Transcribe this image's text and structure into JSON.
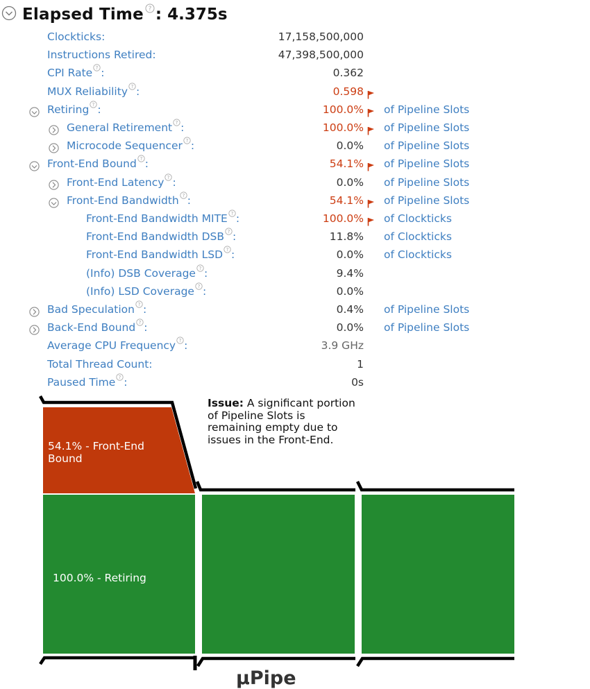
{
  "header": {
    "title": "Elapsed Time",
    "value": ": 4.375s"
  },
  "metrics": [
    {
      "label": "Clockticks",
      "value": "17,158,500,000",
      "unit": "",
      "help": false,
      "flag": false,
      "value_color": "normal"
    },
    {
      "label": "Instructions Retired",
      "value": "47,398,500,000",
      "unit": "",
      "help": false,
      "flag": false,
      "value_color": "normal"
    },
    {
      "label": "CPI Rate",
      "value": "0.362",
      "unit": "",
      "help": true,
      "flag": false,
      "value_color": "normal"
    },
    {
      "label": "MUX Reliability",
      "value": "0.598",
      "unit": "",
      "help": true,
      "flag": true,
      "value_color": "red"
    },
    {
      "label": "Retiring",
      "value": "100.0%",
      "unit": "of Pipeline Slots",
      "help": true,
      "flag": true,
      "value_color": "red"
    },
    {
      "label": "General Retirement",
      "value": "100.0%",
      "unit": "of Pipeline Slots",
      "help": true,
      "flag": true,
      "value_color": "red"
    },
    {
      "label": "Microcode Sequencer",
      "value": "0.0%",
      "unit": "of Pipeline Slots",
      "help": true,
      "flag": false,
      "value_color": "normal"
    },
    {
      "label": "Front-End Bound",
      "value": "54.1%",
      "unit": "of Pipeline Slots",
      "help": true,
      "flag": true,
      "value_color": "red"
    },
    {
      "label": "Front-End Latency",
      "value": "0.0%",
      "unit": "of Pipeline Slots",
      "help": true,
      "flag": false,
      "value_color": "normal"
    },
    {
      "label": "Front-End Bandwidth",
      "value": "54.1%",
      "unit": "of Pipeline Slots",
      "help": true,
      "flag": true,
      "value_color": "red"
    },
    {
      "label": "Front-End Bandwidth MITE",
      "value": "100.0%",
      "unit": "of Clockticks",
      "help": true,
      "flag": true,
      "value_color": "red"
    },
    {
      "label": "Front-End Bandwidth DSB",
      "value": "11.8%",
      "unit": "of Clockticks",
      "help": true,
      "flag": false,
      "value_color": "normal"
    },
    {
      "label": "Front-End Bandwidth LSD",
      "value": "0.0%",
      "unit": "of Clockticks",
      "help": true,
      "flag": false,
      "value_color": "normal"
    },
    {
      "label": "(Info) DSB Coverage",
      "value": "9.4%",
      "unit": "",
      "help": true,
      "flag": false,
      "value_color": "normal"
    },
    {
      "label": "(Info) LSD Coverage",
      "value": "0.0%",
      "unit": "",
      "help": true,
      "flag": false,
      "value_color": "normal"
    },
    {
      "label": "Bad Speculation",
      "value": "0.4%",
      "unit": "of Pipeline Slots",
      "help": true,
      "flag": false,
      "value_color": "normal"
    },
    {
      "label": "Back-End Bound",
      "value": "0.0%",
      "unit": "of Pipeline Slots",
      "help": true,
      "flag": false,
      "value_color": "normal"
    },
    {
      "label": "Average CPU Frequency",
      "value": "3.9 GHz",
      "unit": "",
      "help": true,
      "flag": false,
      "value_color": "gray"
    },
    {
      "label": "Total Thread Count",
      "value": "1",
      "unit": "",
      "help": false,
      "flag": false,
      "value_color": "normal"
    },
    {
      "label": "Paused Time",
      "value": "0s",
      "unit": "",
      "help": true,
      "flag": false,
      "value_color": "normal"
    }
  ],
  "diagram": {
    "issue_title": "Issue:",
    "issue_text": " A significant portion of Pipeline Slots is remaining empty due to issues in the Front-End.",
    "front_end_label": "54.1% - Front-End Bound",
    "retiring_label": "100.0% - Retiring",
    "pipe_label": "µPipe",
    "front_end_fraction": 0.541,
    "retiring_fraction": 1.0,
    "colors": {
      "front_end": "#c0390b",
      "retiring": "#238a30",
      "outline": "#000000"
    }
  },
  "icons": {
    "expanded": "circle-chevron-down-icon",
    "collapsed": "circle-chevron-right-icon",
    "help": "question-circle-icon",
    "flag": "flag-icon"
  }
}
